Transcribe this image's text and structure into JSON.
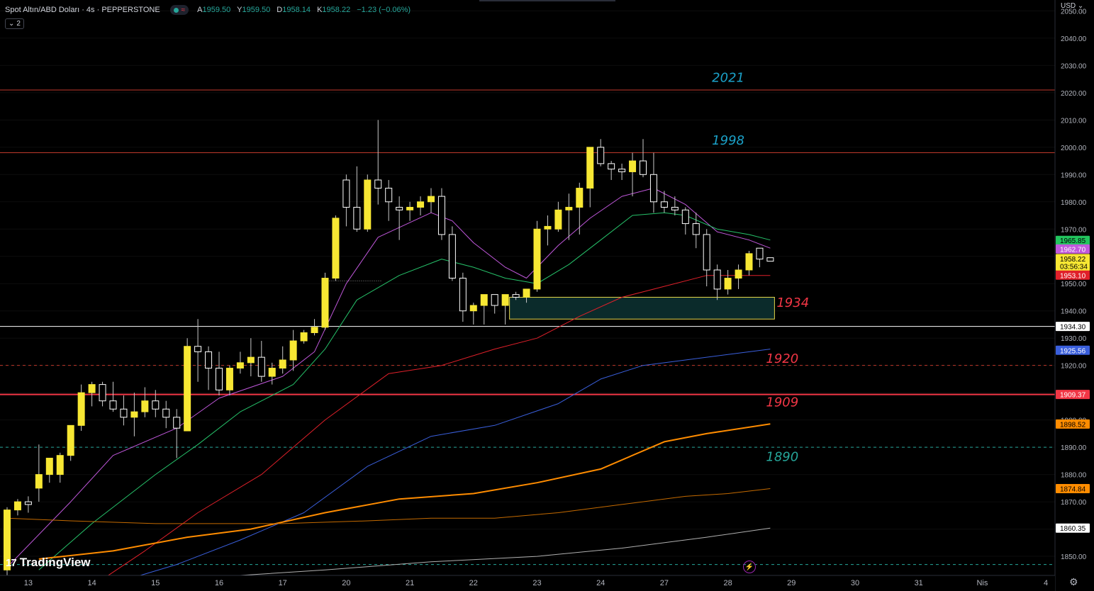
{
  "header": {
    "symbol": "Spot Altın/ABD Doları · 4s · PEPPERSTONE",
    "signal_icon": "wave-icon",
    "signal_text": "≈",
    "ohlc": {
      "open_label": "A",
      "open": "1959.50",
      "high_label": "Y",
      "high": "1959.50",
      "low_label": "D",
      "low": "1958.14",
      "close_label": "K",
      "close": "1958.22",
      "change": "−1.23 (−0.06%)"
    },
    "indicators_toggle": "2"
  },
  "price_axis": {
    "currency": "USD"
  },
  "branding": {
    "logo": "TradingView"
  },
  "colors": {
    "background": "#000000",
    "up": "#f7e733",
    "down": "#ffffff",
    "grid": "#1a1a1a",
    "level_red": "#f23645",
    "zone": "#e6d74a"
  },
  "chart_data": {
    "type": "candlestick",
    "timeframe": "4s",
    "ylim": [
      1843,
      2054
    ],
    "y_ticks": [
      1850,
      1860,
      1870,
      1880,
      1890,
      1900,
      1910,
      1920,
      1930,
      1940,
      1950,
      1960,
      1970,
      1980,
      1990,
      2000,
      2010,
      2020,
      2030,
      2040,
      2050
    ],
    "x_labels": [
      {
        "i": 2,
        "t": "13"
      },
      {
        "i": 8,
        "t": "14"
      },
      {
        "i": 14,
        "t": "15"
      },
      {
        "i": 20,
        "t": "16"
      },
      {
        "i": 26,
        "t": "17"
      },
      {
        "i": 32,
        "t": "20"
      },
      {
        "i": 38,
        "t": "21"
      },
      {
        "i": 44,
        "t": "22"
      },
      {
        "i": 50,
        "t": "23"
      },
      {
        "i": 56,
        "t": "24"
      },
      {
        "i": 62,
        "t": "27"
      },
      {
        "i": 68,
        "t": "28"
      },
      {
        "i": 74,
        "t": "29"
      },
      {
        "i": 80,
        "t": "30"
      },
      {
        "i": 86,
        "t": "31"
      },
      {
        "i": 92,
        "t": "Nis"
      },
      {
        "i": 98,
        "t": "4"
      }
    ],
    "candles": [
      [
        1845,
        1868,
        1842,
        1867
      ],
      [
        1867,
        1871,
        1865,
        1870
      ],
      [
        1870,
        1872,
        1866,
        1869
      ],
      [
        1875,
        1891,
        1870,
        1880
      ],
      [
        1880,
        1884,
        1877,
        1886
      ],
      [
        1880,
        1888,
        1877,
        1887
      ],
      [
        1887,
        1896,
        1885,
        1898
      ],
      [
        1898,
        1913,
        1896,
        1910
      ],
      [
        1910,
        1914,
        1905,
        1913
      ],
      [
        1913,
        1914,
        1905,
        1907
      ],
      [
        1907,
        1914,
        1903,
        1904
      ],
      [
        1904,
        1909,
        1898,
        1901
      ],
      [
        1901,
        1910,
        1894,
        1903
      ],
      [
        1903,
        1912,
        1901,
        1907
      ],
      [
        1907,
        1911,
        1901,
        1904
      ],
      [
        1904,
        1907,
        1897,
        1901
      ],
      [
        1901,
        1904,
        1886,
        1897
      ],
      [
        1896,
        1930,
        1896,
        1927
      ],
      [
        1927,
        1937,
        1914,
        1925
      ],
      [
        1925,
        1927,
        1911,
        1919
      ],
      [
        1919,
        1925,
        1909,
        1911
      ],
      [
        1911,
        1920,
        1909,
        1919
      ],
      [
        1919,
        1925,
        1917,
        1921
      ],
      [
        1921,
        1930,
        1916,
        1923
      ],
      [
        1923,
        1929,
        1914,
        1916
      ],
      [
        1916,
        1921,
        1913,
        1919
      ],
      [
        1919,
        1927,
        1917,
        1922
      ],
      [
        1922,
        1933,
        1918,
        1929
      ],
      [
        1929,
        1933,
        1928,
        1932
      ],
      [
        1932,
        1937,
        1931,
        1934
      ],
      [
        1934,
        1954,
        1933,
        1952
      ],
      [
        1952,
        1975,
        1951,
        1974
      ],
      [
        1988,
        1990,
        1971,
        1978
      ],
      [
        1978,
        1993,
        1969,
        1970
      ],
      [
        1970,
        1990,
        1969,
        1988
      ],
      [
        1988,
        2010,
        1979,
        1985
      ],
      [
        1985,
        1988,
        1973,
        1980
      ],
      [
        1978,
        1982,
        1966,
        1977
      ],
      [
        1977,
        1980,
        1973,
        1978
      ],
      [
        1978,
        1982,
        1975,
        1980
      ],
      [
        1980,
        1985,
        1976,
        1982
      ],
      [
        1982,
        1985,
        1966,
        1968
      ],
      [
        1968,
        1971,
        1951,
        1952
      ],
      [
        1952,
        1954,
        1936,
        1940
      ],
      [
        1940,
        1943,
        1935,
        1942
      ],
      [
        1942,
        1946,
        1935,
        1946
      ],
      [
        1946,
        1946,
        1939,
        1942
      ],
      [
        1942,
        1946,
        1935,
        1946
      ],
      [
        1946,
        1947,
        1944,
        1945
      ],
      [
        1945,
        1948,
        1943,
        1948
      ],
      [
        1948,
        1973,
        1947,
        1970
      ],
      [
        1970,
        1975,
        1964,
        1971
      ],
      [
        1970,
        1980,
        1969,
        1977
      ],
      [
        1977,
        1983,
        1966,
        1978
      ],
      [
        1978,
        1987,
        1968,
        1985
      ],
      [
        1985,
        2000,
        1978,
        2000
      ],
      [
        2000,
        2003,
        1993,
        1994
      ],
      [
        1994,
        1995,
        1988,
        1992
      ],
      [
        1992,
        1994,
        1988,
        1991
      ],
      [
        1991,
        1998,
        1982,
        1995
      ],
      [
        1995,
        2003,
        1989,
        1990
      ],
      [
        1990,
        1998,
        1976,
        1980
      ],
      [
        1980,
        1984,
        1976,
        1978
      ],
      [
        1978,
        1982,
        1975,
        1977
      ],
      [
        1977,
        1978,
        1968,
        1972
      ],
      [
        1972,
        1976,
        1963,
        1968
      ],
      [
        1968,
        1970,
        1949,
        1955
      ],
      [
        1955,
        1957,
        1944,
        1948
      ],
      [
        1948,
        1955,
        1946,
        1952
      ],
      [
        1952,
        1957,
        1948,
        1955
      ],
      [
        1955,
        1962,
        1953,
        1961
      ],
      [
        1963,
        1963,
        1956,
        1959
      ],
      [
        1959.5,
        1959.5,
        1958.14,
        1958.22
      ]
    ],
    "moving_averages": [
      {
        "color": "#c158dc",
        "width": 1,
        "pts": [
          [
            0,
            1846
          ],
          [
            6,
            1870
          ],
          [
            10,
            1887
          ],
          [
            16,
            1897
          ],
          [
            20,
            1908
          ],
          [
            26,
            1916
          ],
          [
            29,
            1925
          ],
          [
            32,
            1950
          ],
          [
            35,
            1967
          ],
          [
            40,
            1976
          ],
          [
            42,
            1973
          ],
          [
            44,
            1965
          ],
          [
            47,
            1956
          ],
          [
            49,
            1952
          ],
          [
            52,
            1964
          ],
          [
            55,
            1974
          ],
          [
            58,
            1982
          ],
          [
            61,
            1985
          ],
          [
            64,
            1979
          ],
          [
            67,
            1969
          ],
          [
            70,
            1966
          ],
          [
            72,
            1963
          ]
        ]
      },
      {
        "color": "#26c26a",
        "width": 1,
        "pts": [
          [
            3,
            1845
          ],
          [
            8,
            1862
          ],
          [
            14,
            1880
          ],
          [
            18,
            1891
          ],
          [
            22,
            1903
          ],
          [
            27,
            1913
          ],
          [
            30,
            1926
          ],
          [
            33,
            1944
          ],
          [
            37,
            1953
          ],
          [
            41,
            1959
          ],
          [
            44,
            1956
          ],
          [
            47,
            1952
          ],
          [
            50,
            1950
          ],
          [
            53,
            1957
          ],
          [
            56,
            1966
          ],
          [
            59,
            1975
          ],
          [
            62,
            1976
          ],
          [
            64,
            1975
          ],
          [
            67,
            1970
          ],
          [
            70,
            1968
          ],
          [
            72,
            1966
          ]
        ]
      },
      {
        "color": "#e0202a",
        "width": 1,
        "pts": [
          [
            8,
            1839
          ],
          [
            13,
            1852
          ],
          [
            18,
            1866
          ],
          [
            24,
            1880
          ],
          [
            30,
            1900
          ],
          [
            36,
            1917
          ],
          [
            41,
            1920
          ],
          [
            46,
            1926
          ],
          [
            50,
            1930
          ],
          [
            54,
            1938
          ],
          [
            58,
            1945
          ],
          [
            62,
            1949
          ],
          [
            66,
            1953
          ],
          [
            72,
            1953
          ]
        ]
      },
      {
        "color": "#3a5fdc",
        "width": 1,
        "pts": [
          [
            10,
            1840
          ],
          [
            16,
            1847
          ],
          [
            22,
            1856
          ],
          [
            28,
            1866
          ],
          [
            34,
            1883
          ],
          [
            40,
            1894
          ],
          [
            46,
            1898
          ],
          [
            52,
            1906
          ],
          [
            56,
            1915
          ],
          [
            60,
            1920
          ],
          [
            64,
            1922
          ],
          [
            68,
            1924
          ],
          [
            72,
            1926
          ]
        ]
      },
      {
        "color": "#ff8c00",
        "width": 2,
        "pts": [
          [
            3,
            1849
          ],
          [
            10,
            1852
          ],
          [
            17,
            1857
          ],
          [
            23,
            1860
          ],
          [
            30,
            1866
          ],
          [
            37,
            1871
          ],
          [
            44,
            1873
          ],
          [
            50,
            1877
          ],
          [
            56,
            1882
          ],
          [
            62,
            1892
          ],
          [
            66,
            1895
          ],
          [
            72,
            1898.52
          ]
        ]
      },
      {
        "color": "#c46a00",
        "width": 1,
        "pts": [
          [
            0,
            1864
          ],
          [
            6,
            1863
          ],
          [
            14,
            1862
          ],
          [
            26,
            1862
          ],
          [
            34,
            1863
          ],
          [
            40,
            1864
          ],
          [
            46,
            1864
          ],
          [
            52,
            1866
          ],
          [
            58,
            1869
          ],
          [
            64,
            1872
          ],
          [
            68,
            1873
          ],
          [
            72,
            1874.84
          ]
        ]
      },
      {
        "color": "#b0b0b0",
        "width": 1,
        "pts": [
          [
            22,
            1843
          ],
          [
            30,
            1845
          ],
          [
            40,
            1848
          ],
          [
            50,
            1850
          ],
          [
            58,
            1853
          ],
          [
            66,
            1857
          ],
          [
            72,
            1860.35
          ]
        ]
      }
    ],
    "levels": [
      {
        "y": 2021,
        "color": "#c0392b",
        "width": 1,
        "dash": false
      },
      {
        "y": 1998,
        "color": "#c0392b",
        "width": 1,
        "dash": false
      },
      {
        "y": 1934.3,
        "color": "#ffffff",
        "width": 1,
        "dash": false
      },
      {
        "y": 1920,
        "color": "#c0392b",
        "width": 1,
        "dash": true
      },
      {
        "y": 1909.37,
        "color": "#f23645",
        "width": 2,
        "dash": false
      },
      {
        "y": 1890,
        "color": "#26a69a",
        "width": 1,
        "dash": true
      },
      {
        "y": 1847,
        "color": "#26a69a",
        "width": 1,
        "dash": true
      }
    ],
    "annotations": [
      {
        "text": "2021",
        "i": 66.5,
        "y": 2024,
        "color": "#1ba1c8"
      },
      {
        "text": "1998",
        "i": 66.5,
        "y": 2001,
        "color": "#1ba1c8"
      },
      {
        "text": "1934",
        "i": 72.6,
        "y": 1941.5,
        "color": "#f23645"
      },
      {
        "text": "1920",
        "i": 71.6,
        "y": 1921,
        "color": "#f23645"
      },
      {
        "text": "1909",
        "i": 71.6,
        "y": 1905,
        "color": "#f23645"
      },
      {
        "text": "1890",
        "i": 71.6,
        "y": 1885,
        "color": "#26a69a"
      }
    ],
    "zone": {
      "i0": 47.4,
      "i1": 72.4,
      "y0": 1937,
      "y1": 1945,
      "border": "#e6d74a",
      "fill": "#0b2b2b"
    },
    "dotted_line": {
      "i0": 30,
      "i1": 35.3,
      "y": 1951
    },
    "price_labels": [
      {
        "text": "1965.85",
        "y": 1965.85,
        "bg": "#22c55e",
        "fg": "#000000"
      },
      {
        "text": "1962.70",
        "y": 1962.7,
        "bg": "#c158dc",
        "fg": "#ffffff"
      },
      {
        "text": "1958.22",
        "y": 1959.2,
        "bg": "#f7e733",
        "fg": "#000000"
      },
      {
        "text": "03:56:34",
        "y": 1956.4,
        "bg": "#f7e733",
        "fg": "#000000"
      },
      {
        "text": "1953.10",
        "y": 1953.1,
        "bg": "#e0202a",
        "fg": "#ffffff"
      },
      {
        "text": "1934.30",
        "y": 1934.3,
        "bg": "#ffffff",
        "fg": "#000000"
      },
      {
        "text": "1925.56",
        "y": 1925.56,
        "bg": "#3a5fdc",
        "fg": "#ffffff"
      },
      {
        "text": "1909.37",
        "y": 1909.37,
        "bg": "#f23645",
        "fg": "#ffffff"
      },
      {
        "text": "1898.52",
        "y": 1898.52,
        "bg": "#ff8c00",
        "fg": "#000000"
      },
      {
        "text": "1874.84",
        "y": 1874.84,
        "bg": "#ff8c00",
        "fg": "#000000"
      },
      {
        "text": "1860.35",
        "y": 1860.35,
        "bg": "#ffffff",
        "fg": "#000000"
      }
    ]
  }
}
